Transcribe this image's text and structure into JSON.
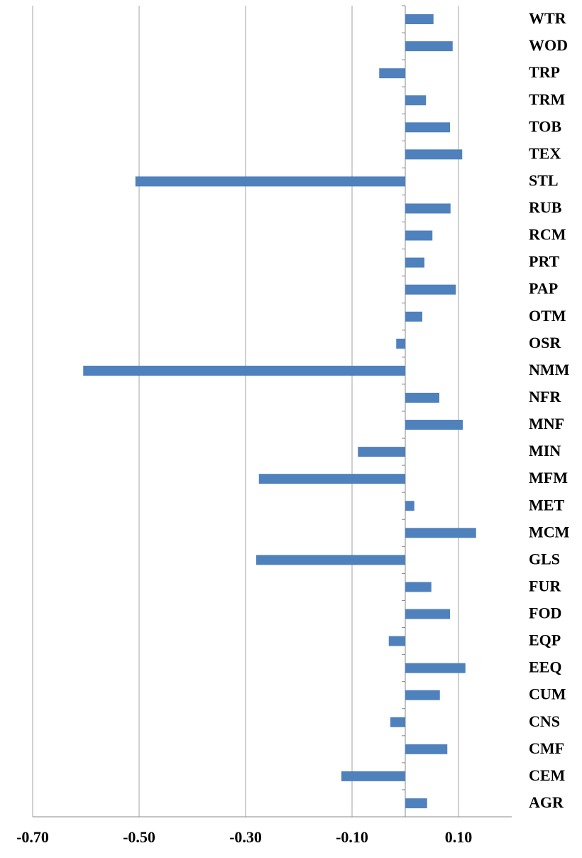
{
  "chart_data": {
    "type": "hbar",
    "categories": [
      "WTR",
      "WOD",
      "TRP",
      "TRM",
      "TOB",
      "TEX",
      "STL",
      "RUB",
      "RCM",
      "PRT",
      "PAP",
      "OTM",
      "OSR",
      "NMM",
      "NFR",
      "MNF",
      "MIN",
      "MFM",
      "MET",
      "MCM",
      "GLS",
      "FUR",
      "FOD",
      "EQP",
      "EEQ",
      "CUM",
      "CNS",
      "CMF",
      "CEM",
      "AGR"
    ],
    "values": [
      0.053,
      0.089,
      -0.049,
      0.039,
      0.084,
      0.107,
      -0.507,
      0.085,
      0.051,
      0.036,
      0.095,
      0.032,
      -0.017,
      -0.605,
      0.064,
      0.108,
      -0.089,
      -0.275,
      0.017,
      0.133,
      -0.28,
      0.049,
      0.084,
      -0.031,
      0.113,
      0.065,
      -0.028,
      0.079,
      -0.12,
      0.041
    ],
    "color": "#4f81bd",
    "xlim": [
      -0.7,
      0.2
    ],
    "xticks": [
      {
        "value": -0.7,
        "label": "-0.70"
      },
      {
        "value": -0.5,
        "label": "-0.50"
      },
      {
        "value": -0.3,
        "label": "-0.30"
      },
      {
        "value": -0.1,
        "label": "-0.10"
      },
      {
        "value": 0.1,
        "label": "0.10"
      }
    ],
    "grid": true
  }
}
